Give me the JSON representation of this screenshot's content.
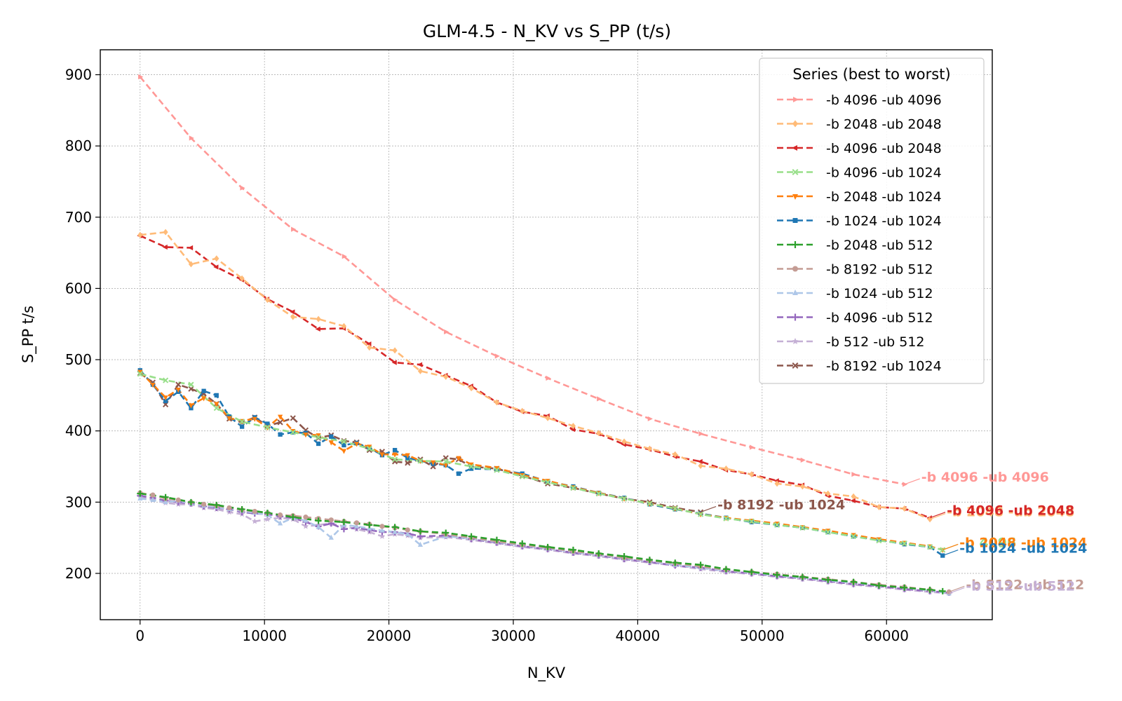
{
  "chart_data": {
    "type": "line",
    "title": "GLM-4.5 - N_KV vs S_PP (t/s)",
    "xlabel": "N_KV",
    "ylabel": "S_PP t/s",
    "xlim": [
      -3200,
      68500
    ],
    "ylim": [
      135,
      935
    ],
    "xticks": [
      0,
      10000,
      20000,
      30000,
      40000,
      50000,
      60000
    ],
    "xtick_labels": [
      "0",
      "10000",
      "20000",
      "30000",
      "40000",
      "50000",
      "60000"
    ],
    "yticks": [
      200,
      300,
      400,
      500,
      600,
      700,
      800,
      900
    ],
    "ytick_labels": [
      "200",
      "300",
      "400",
      "500",
      "600",
      "700",
      "800",
      "900"
    ],
    "grid": true,
    "legend": {
      "title": "Series (best to worst)",
      "position": "top-right"
    },
    "series": [
      {
        "name": "-b 4096 -ub 4096",
        "color": "#ff9896",
        "marker": "tri-right",
        "end_label": "-b 4096 -ub 4096",
        "x": [
          0,
          4096,
          8192,
          12288,
          16384,
          20480,
          24576,
          28672,
          32768,
          36864,
          40960,
          45056,
          49152,
          53248,
          57344,
          61440
        ],
        "y": [
          897,
          811,
          741,
          683,
          645,
          584,
          539,
          505,
          474,
          445,
          417,
          396,
          377,
          359,
          339,
          325
        ]
      },
      {
        "name": "-b 2048 -ub 2048",
        "color": "#ffbb78",
        "marker": "diamond",
        "end_label": "-b 2048 -ub 2048",
        "x": [
          0,
          2048,
          4096,
          6144,
          8192,
          10240,
          12288,
          14336,
          16384,
          18432,
          20480,
          22528,
          24576,
          26624,
          28672,
          30720,
          32768,
          34816,
          36864,
          38912,
          40960,
          43008,
          45056,
          47104,
          49152,
          51200,
          53248,
          55296,
          57344,
          59392,
          61440,
          63488
        ],
        "y": [
          675,
          679,
          634,
          642,
          614,
          584,
          560,
          557,
          547,
          517,
          513,
          484,
          476,
          460,
          440,
          428,
          418,
          407,
          397,
          385,
          375,
          367,
          351,
          347,
          339,
          326,
          322,
          312,
          308,
          293,
          291,
          276
        ]
      },
      {
        "name": "-b 4096 -ub 2048",
        "color": "#d62728",
        "marker": "tri-left",
        "end_label": "-b 4096 -ub 2048",
        "x": [
          0,
          2048,
          4096,
          6144,
          8192,
          10240,
          12288,
          14336,
          16384,
          18432,
          20480,
          22528,
          24576,
          26624,
          28672,
          30720,
          32768,
          34816,
          36864,
          38912,
          40960,
          43008,
          45056,
          47104,
          49152,
          51200,
          53248,
          55296,
          57344,
          59392,
          61440,
          63488
        ],
        "y": [
          674,
          658,
          657,
          630,
          612,
          585,
          567,
          543,
          544,
          522,
          496,
          493,
          478,
          463,
          440,
          427,
          421,
          402,
          396,
          381,
          374,
          364,
          357,
          345,
          339,
          330,
          324,
          309,
          302,
          293,
          291,
          278
        ]
      },
      {
        "name": "-b 4096 -ub 1024",
        "color": "#98df8a",
        "marker": "x",
        "end_label": "-b 4096 -ub 1024",
        "x": [
          0,
          2048,
          4096,
          6144,
          8192,
          10240,
          12288,
          14336,
          16384,
          18432,
          20480,
          22528,
          24576,
          26624,
          28672,
          30720,
          32768,
          34816,
          36864,
          38912,
          40960,
          43008,
          45056,
          47104,
          49152,
          51200,
          53248,
          55296,
          57344,
          59392,
          61440,
          63488,
          64512
        ],
        "y": [
          480,
          471,
          465,
          432,
          413,
          405,
          398,
          391,
          385,
          375,
          360,
          358,
          357,
          350,
          345,
          336,
          328,
          320,
          312,
          305,
          298,
          291,
          283,
          277,
          273,
          268,
          264,
          258,
          252,
          246,
          242,
          237,
          233
        ]
      },
      {
        "name": "-b 2048 -ub 1024",
        "color": "#ff7f0e",
        "marker": "tri-down",
        "end_label": "-b 2048 -ub 1024",
        "x": [
          0,
          1024,
          2048,
          3072,
          4096,
          5120,
          6144,
          7168,
          8192,
          9216,
          10240,
          11264,
          12288,
          13312,
          14336,
          15360,
          16384,
          17408,
          18432,
          19456,
          20480,
          21504,
          22528,
          23552,
          24576,
          25600,
          26624,
          28672,
          30720,
          32768,
          34816,
          36864,
          38912,
          40960,
          43008,
          45056,
          47104,
          49152,
          51200,
          53248,
          55296,
          57344,
          59392,
          61440,
          63488,
          64512
        ],
        "y": [
          483,
          465,
          447,
          458,
          436,
          446,
          438,
          418,
          414,
          417,
          405,
          420,
          400,
          395,
          394,
          384,
          372,
          382,
          378,
          367,
          367,
          366,
          358,
          356,
          352,
          362,
          353,
          348,
          338,
          330,
          321,
          313,
          305,
          298,
          291,
          283,
          278,
          274,
          270,
          265,
          260,
          254,
          248,
          243,
          238,
          233
        ]
      },
      {
        "name": "-b 1024 -ub 1024",
        "color": "#1f77b4",
        "marker": "square",
        "end_label": "-b 1024 -ub 1024",
        "x": [
          0,
          1024,
          2048,
          3072,
          4096,
          5120,
          6144,
          7168,
          8192,
          9216,
          10240,
          11264,
          12288,
          13312,
          14336,
          15360,
          16384,
          17408,
          18432,
          19456,
          20480,
          21504,
          22528,
          23552,
          24576,
          25600,
          26624,
          28672,
          30720,
          32768,
          34816,
          36864,
          38912,
          40960,
          43008,
          45056,
          47104,
          49152,
          51200,
          53248,
          55296,
          57344,
          59392,
          61440,
          63488,
          64512
        ],
        "y": [
          485,
          465,
          442,
          455,
          432,
          456,
          450,
          420,
          406,
          419,
          410,
          395,
          398,
          397,
          382,
          392,
          380,
          383,
          376,
          366,
          373,
          362,
          358,
          354,
          352,
          340,
          347,
          346,
          340,
          329,
          322,
          313,
          306,
          297,
          290,
          284,
          278,
          272,
          268,
          264,
          258,
          252,
          247,
          241,
          237,
          225
        ]
      },
      {
        "name": "-b 2048 -ub 512",
        "color": "#2ca02c",
        "marker": "plus",
        "x": [
          0,
          2048,
          4096,
          6144,
          8192,
          10240,
          12288,
          14336,
          16384,
          18432,
          20480,
          22528,
          24576,
          26624,
          28672,
          30720,
          32768,
          34816,
          36864,
          38912,
          40960,
          43008,
          45056,
          47104,
          49152,
          51200,
          53248,
          55296,
          57344,
          59392,
          61440,
          63488,
          64512
        ],
        "y": [
          312,
          307,
          300,
          296,
          290,
          285,
          279,
          274,
          272,
          268,
          265,
          259,
          257,
          252,
          247,
          242,
          237,
          233,
          228,
          224,
          219,
          215,
          212,
          206,
          202,
          198,
          195,
          191,
          188,
          183,
          180,
          177,
          175
        ]
      },
      {
        "name": "-b 8192 -ub 512",
        "color": "#c49c94",
        "marker": "circle",
        "end_label": "-b 8192 -ub 512",
        "x": [
          0,
          1024,
          2048,
          3072,
          4096,
          5120,
          6144,
          7168,
          8192,
          9216,
          10240,
          11264,
          12288,
          13312,
          14336,
          15360,
          16384,
          17408,
          18432,
          19456,
          20480,
          21504,
          22528,
          24576,
          26624,
          28672,
          30720,
          32768,
          34816,
          36864,
          38912,
          40960,
          43008,
          45056,
          47104,
          49152,
          51200,
          53248,
          55296,
          57344,
          59392,
          61440,
          63488,
          65024
        ],
        "y": [
          313,
          310,
          305,
          303,
          300,
          297,
          295,
          292,
          289,
          287,
          285,
          282,
          281,
          279,
          277,
          275,
          273,
          271,
          269,
          266,
          264,
          261,
          259,
          255,
          250,
          245,
          240,
          236,
          231,
          227,
          222,
          218,
          214,
          210,
          205,
          202,
          199,
          195,
          192,
          188,
          184,
          181,
          177,
          174
        ]
      },
      {
        "name": "-b 1024 -ub 512",
        "color": "#aec7e8",
        "marker": "triangle",
        "x": [
          0,
          1024,
          2048,
          3072,
          4096,
          5120,
          6144,
          7168,
          8192,
          9216,
          10240,
          11264,
          12288,
          13312,
          14336,
          15360,
          16384,
          17408,
          18432,
          19456,
          20480,
          21504,
          22528,
          24576,
          26624,
          28672,
          30720,
          32768,
          34816,
          36864,
          38912,
          40960,
          43008,
          45056,
          47104,
          49152,
          51200,
          53248,
          55296,
          57344,
          59392,
          61440,
          63488,
          65024
        ],
        "y": [
          305,
          303,
          300,
          302,
          298,
          295,
          293,
          290,
          288,
          285,
          282,
          270,
          278,
          274,
          265,
          250,
          268,
          266,
          263,
          260,
          258,
          255,
          240,
          252,
          249,
          244,
          239,
          235,
          230,
          226,
          221,
          217,
          212,
          208,
          204,
          201,
          197,
          194,
          190,
          187,
          183,
          180,
          176,
          172
        ]
      },
      {
        "name": "-b 4096 -ub 512",
        "color": "#9467bd",
        "marker": "plus",
        "x": [
          0,
          1024,
          2048,
          3072,
          4096,
          5120,
          6144,
          7168,
          8192,
          9216,
          10240,
          11264,
          12288,
          13312,
          14336,
          15360,
          16384,
          17408,
          18432,
          19456,
          20480,
          21504,
          22528,
          24576,
          26624,
          28672,
          30720,
          32768,
          34816,
          36864,
          38912,
          40960,
          43008,
          45056,
          47104,
          49152,
          51200,
          53248,
          55296,
          57344,
          59392,
          61440,
          63488,
          65024
        ],
        "y": [
          309,
          306,
          302,
          300,
          298,
          294,
          292,
          290,
          286,
          284,
          283,
          280,
          278,
          272,
          266,
          270,
          262,
          264,
          261,
          258,
          258,
          256,
          252,
          253,
          248,
          243,
          238,
          234,
          229,
          225,
          220,
          216,
          211,
          208,
          203,
          200,
          196,
          193,
          189,
          185,
          182,
          178,
          175,
          173
        ]
      },
      {
        "name": "-b 512 -ub 512",
        "color": "#c5b0d5",
        "marker": "star",
        "end_label": "-b 512 -ub 512",
        "x": [
          0,
          1024,
          2048,
          3072,
          4096,
          5120,
          6144,
          7168,
          8192,
          9216,
          10240,
          11264,
          12288,
          13312,
          14336,
          15360,
          16384,
          17408,
          18432,
          19456,
          20480,
          21504,
          22528,
          24576,
          26624,
          28672,
          30720,
          32768,
          34816,
          36864,
          38912,
          40960,
          43008,
          45056,
          47104,
          49152,
          51200,
          53248,
          55296,
          57344,
          59392,
          61440,
          63488,
          65024
        ],
        "y": [
          307,
          303,
          299,
          297,
          297,
          292,
          290,
          286,
          283,
          273,
          276,
          278,
          276,
          266,
          268,
          270,
          266,
          262,
          258,
          252,
          255,
          253,
          250,
          251,
          247,
          242,
          237,
          233,
          228,
          224,
          219,
          215,
          211,
          206,
          202,
          199,
          195,
          192,
          188,
          184,
          181,
          177,
          174,
          172
        ]
      },
      {
        "name": "-b 8192 -ub 1024",
        "color": "#8c564b",
        "marker": "x",
        "end_label": "-b 8192 -ub 1024",
        "x": [
          0,
          1024,
          2048,
          3072,
          4096,
          5120,
          6144,
          7168,
          8192,
          9216,
          10240,
          11264,
          12288,
          13312,
          14336,
          15360,
          16384,
          17408,
          18432,
          19456,
          20480,
          21504,
          22528,
          23552,
          24576,
          25600,
          26624,
          28672,
          30720,
          32768,
          34816,
          36864,
          38912,
          40960,
          43008,
          45056
        ],
        "y": [
          481,
          468,
          437,
          465,
          459,
          452,
          438,
          417,
          412,
          419,
          407,
          412,
          418,
          401,
          390,
          394,
          386,
          384,
          373,
          371,
          357,
          355,
          360,
          350,
          362,
          360,
          350,
          347,
          337,
          326,
          320,
          312,
          305,
          300,
          292,
          286
        ]
      }
    ]
  }
}
